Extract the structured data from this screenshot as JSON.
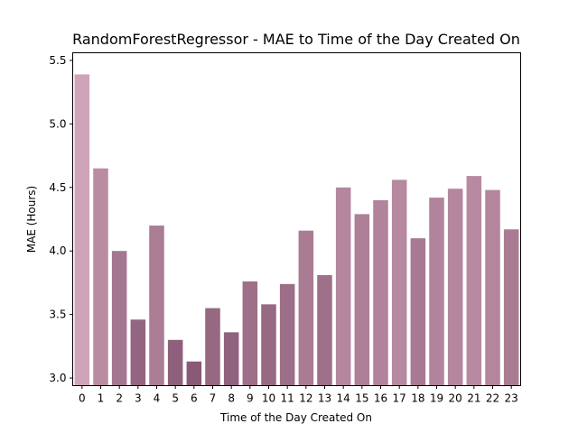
{
  "chart_data": {
    "type": "bar",
    "title": "RandomForestRegressor - MAE to Time of the Day Created On",
    "xlabel": "Time of the Day Created On",
    "ylabel": "MAE (Hours)",
    "categories": [
      "0",
      "1",
      "2",
      "3",
      "4",
      "5",
      "6",
      "7",
      "8",
      "9",
      "10",
      "11",
      "12",
      "13",
      "14",
      "15",
      "16",
      "17",
      "18",
      "19",
      "20",
      "21",
      "22",
      "23"
    ],
    "values": [
      5.39,
      4.65,
      4.0,
      3.46,
      4.2,
      3.3,
      3.13,
      3.55,
      3.36,
      3.76,
      3.58,
      3.74,
      4.16,
      3.81,
      4.5,
      4.29,
      4.4,
      4.56,
      4.1,
      4.42,
      4.49,
      4.59,
      4.48,
      4.17
    ],
    "ylim": [
      2.94,
      5.56
    ],
    "yticks": [
      3.0,
      3.5,
      4.0,
      4.5,
      5.0,
      5.5
    ],
    "ytick_labels": [
      "3.0",
      "3.5",
      "4.0",
      "4.5",
      "5.0",
      "5.5"
    ],
    "grid": false,
    "color_light": "#d0a4b8",
    "color_dark": "#895a76"
  }
}
